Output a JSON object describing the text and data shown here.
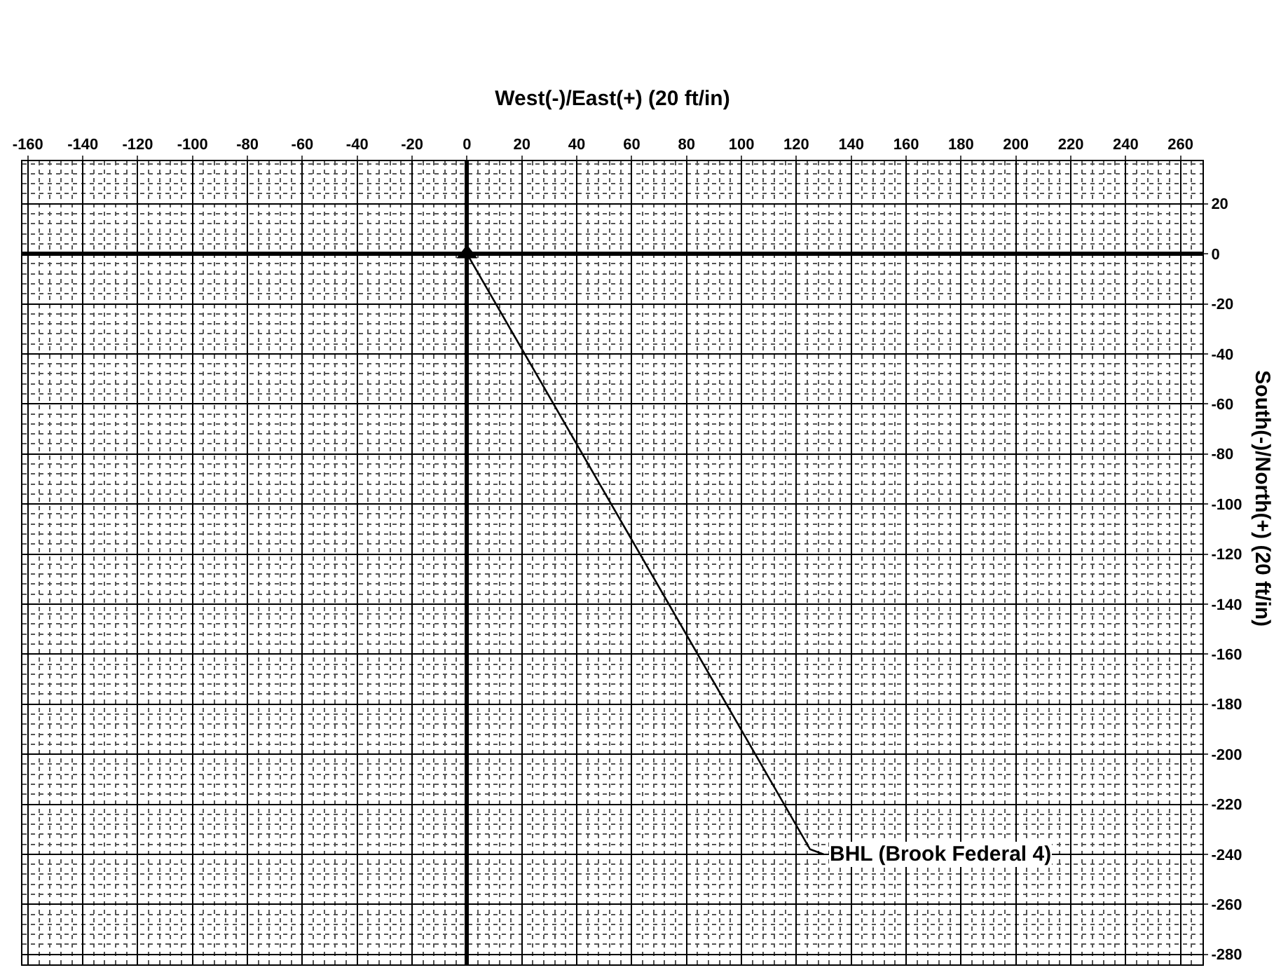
{
  "chart_data": {
    "type": "line",
    "xlabel": "West(-)/East(+) (20 ft/in)",
    "ylabel": "South(-)/North(+) (20 ft/in)",
    "xlim": [
      -162,
      268
    ],
    "ylim": [
      -284,
      37
    ],
    "xticks": [
      -160,
      -140,
      -120,
      -100,
      -80,
      -60,
      -40,
      -20,
      0,
      20,
      40,
      60,
      80,
      100,
      120,
      140,
      160,
      180,
      200,
      220,
      240,
      260
    ],
    "yticks": [
      20,
      0,
      -20,
      -40,
      -60,
      -80,
      -100,
      -120,
      -140,
      -160,
      -180,
      -200,
      -220,
      -240,
      -260,
      -280
    ],
    "grid": true,
    "line_style": "solid",
    "series": [
      {
        "color": "#000000",
        "x": [
          0,
          125,
          130
        ],
        "values": [
          0,
          -238,
          -240
        ],
        "marker": "none"
      },
      {
        "type": "scatter",
        "color": "#000000",
        "x": [
          0
        ],
        "values": [
          0
        ],
        "marker": "triangle"
      }
    ],
    "annotations": [
      {
        "text": "BHL (Brook Federal 4)",
        "x": 130,
        "y": -240
      }
    ]
  }
}
